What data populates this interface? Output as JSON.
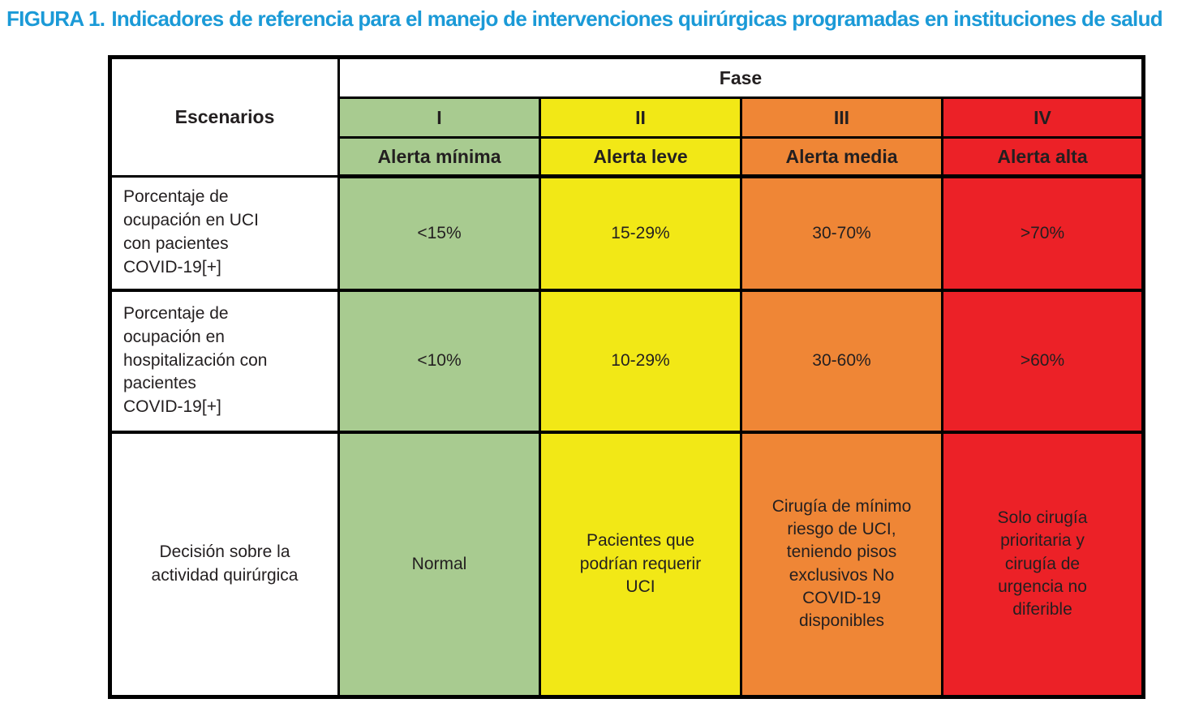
{
  "figure": {
    "label": "FIGURA 1.",
    "title": "Indicadores de referencia para el manejo de intervenciones quirúrgicas programadas en instituciones de salud",
    "title_color": "#1b9ad7"
  },
  "colors": {
    "phase_1_green": "#a8cb90",
    "phase_2_yellow": "#f2e816",
    "phase_3_orange": "#ef8636",
    "phase_4_red": "#ec2127",
    "text_black": "#231f20",
    "border_black": "#000000",
    "title_blue": "#1b9ad7"
  },
  "table": {
    "corner_header": "Escenarios",
    "group_header": "Fase",
    "phases": [
      {
        "numeral": "I",
        "alert_label": "Alerta mínima",
        "color": "#a8cb90"
      },
      {
        "numeral": "II",
        "alert_label": "Alerta leve",
        "color": "#f2e816"
      },
      {
        "numeral": "III",
        "alert_label": "Alerta media",
        "color": "#ef8636"
      },
      {
        "numeral": "IV",
        "alert_label": "Alerta alta",
        "color": "#ec2127"
      }
    ],
    "rows": [
      {
        "label": "Porcentaje de\nocupación en UCI\ncon pacientes\nCOVID-19[+]",
        "values": [
          "<15%",
          "15-29%",
          "30-70%",
          ">70%"
        ]
      },
      {
        "label": "Porcentaje de\nocupación en\nhospitalización con\npacientes\nCOVID-19[+]",
        "values": [
          "<10%",
          "10-29%",
          "30-60%",
          ">60%"
        ]
      },
      {
        "label": "Decisión sobre la\nactividad quirúrgica",
        "values": [
          "Normal",
          "Pacientes que\npodrían requerir\nUCI",
          "Cirugía de mínimo\nriesgo de UCI,\nteniendo pisos\nexclusivos No\nCOVID-19\ndisponibles",
          "Solo cirugía\nprioritaria y\ncirugía de\nurgencia no\ndiferible"
        ]
      }
    ]
  }
}
